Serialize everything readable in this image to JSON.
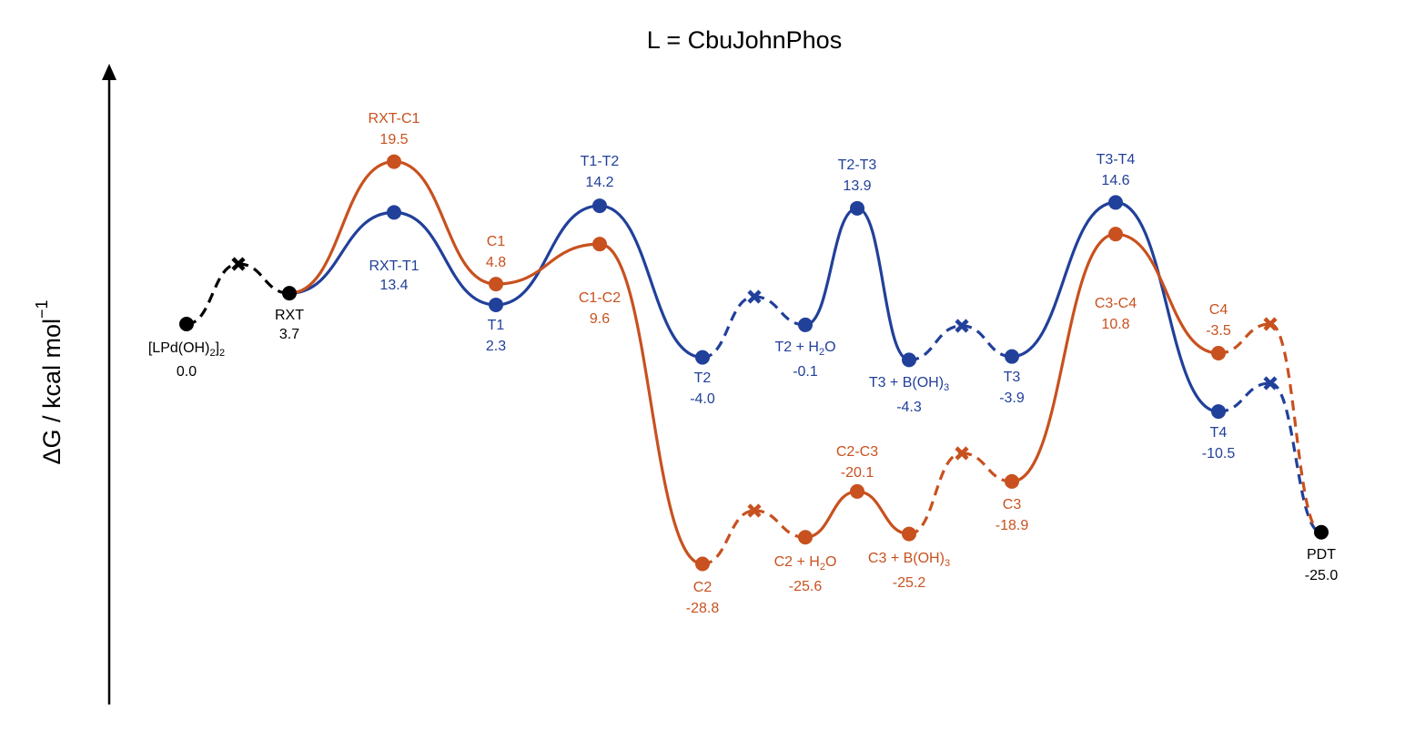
{
  "chart_data": {
    "type": "line",
    "title": "L = CbuJohnPhos",
    "ylabel": "ΔG / kcal mol",
    "ylabel_sup": "−1",
    "colors": {
      "common": "#000000",
      "T": "#21409a",
      "C": "#c8511f"
    },
    "points": {
      "S0": {
        "name_parts": [
          "[LPd(OH)",
          "2",
          "]",
          "2"
        ],
        "value": "0.0",
        "g": 0.0
      },
      "RXT": {
        "name": "RXT",
        "value": "3.7",
        "g": 3.7
      },
      "RXT_T1": {
        "name": "RXT-T1",
        "value": "13.4",
        "g": 13.4
      },
      "T1": {
        "name": "T1",
        "value": "2.3",
        "g": 2.3
      },
      "T1_T2": {
        "name": "T1-T2",
        "value": "14.2",
        "g": 14.2
      },
      "T2": {
        "name": "T2",
        "value": "-4.0",
        "g": -4.0
      },
      "T2W": {
        "name_parts": [
          "T2 + H",
          "2",
          "O"
        ],
        "value": "-0.1",
        "g": -0.1
      },
      "T2_T3": {
        "name": "T2-T3",
        "value": "13.9",
        "g": 13.9
      },
      "T3B": {
        "name_parts": [
          "T3 + B(OH)",
          "3"
        ],
        "value": "-4.3",
        "g": -4.3
      },
      "T3": {
        "name": "T3",
        "value": "-3.9",
        "g": -3.9
      },
      "T3_T4": {
        "name": "T3-T4",
        "value": "14.6",
        "g": 14.6
      },
      "T4": {
        "name": "T4",
        "value": "-10.5",
        "g": -10.5
      },
      "RXT_C1": {
        "name": "RXT-C1",
        "value": "19.5",
        "g": 19.5
      },
      "C1": {
        "name": "C1",
        "value": "4.8",
        "g": 4.8
      },
      "C1_C2": {
        "name": "C1-C2",
        "value": "9.6",
        "g": 9.6
      },
      "C2": {
        "name": "C2",
        "value": "-28.8",
        "g": -28.8
      },
      "C2W": {
        "name_parts": [
          "C2 + H",
          "2",
          "O"
        ],
        "value": "-25.6",
        "g": -25.6
      },
      "C2_C3": {
        "name": "C2-C3",
        "value": "-20.1",
        "g": -20.1
      },
      "C3B": {
        "name_parts": [
          "C3 + B(OH)",
          "3"
        ],
        "value": "-25.2",
        "g": -25.2
      },
      "C3": {
        "name": "C3",
        "value": "-18.9",
        "g": -18.9
      },
      "C3_C4": {
        "name": "C3-C4",
        "value": "10.8",
        "g": 10.8
      },
      "C4": {
        "name": "C4",
        "value": "-3.5",
        "g": -3.5
      },
      "PDT": {
        "name": "PDT",
        "value": "-25.0",
        "g": -25.0
      }
    }
  }
}
